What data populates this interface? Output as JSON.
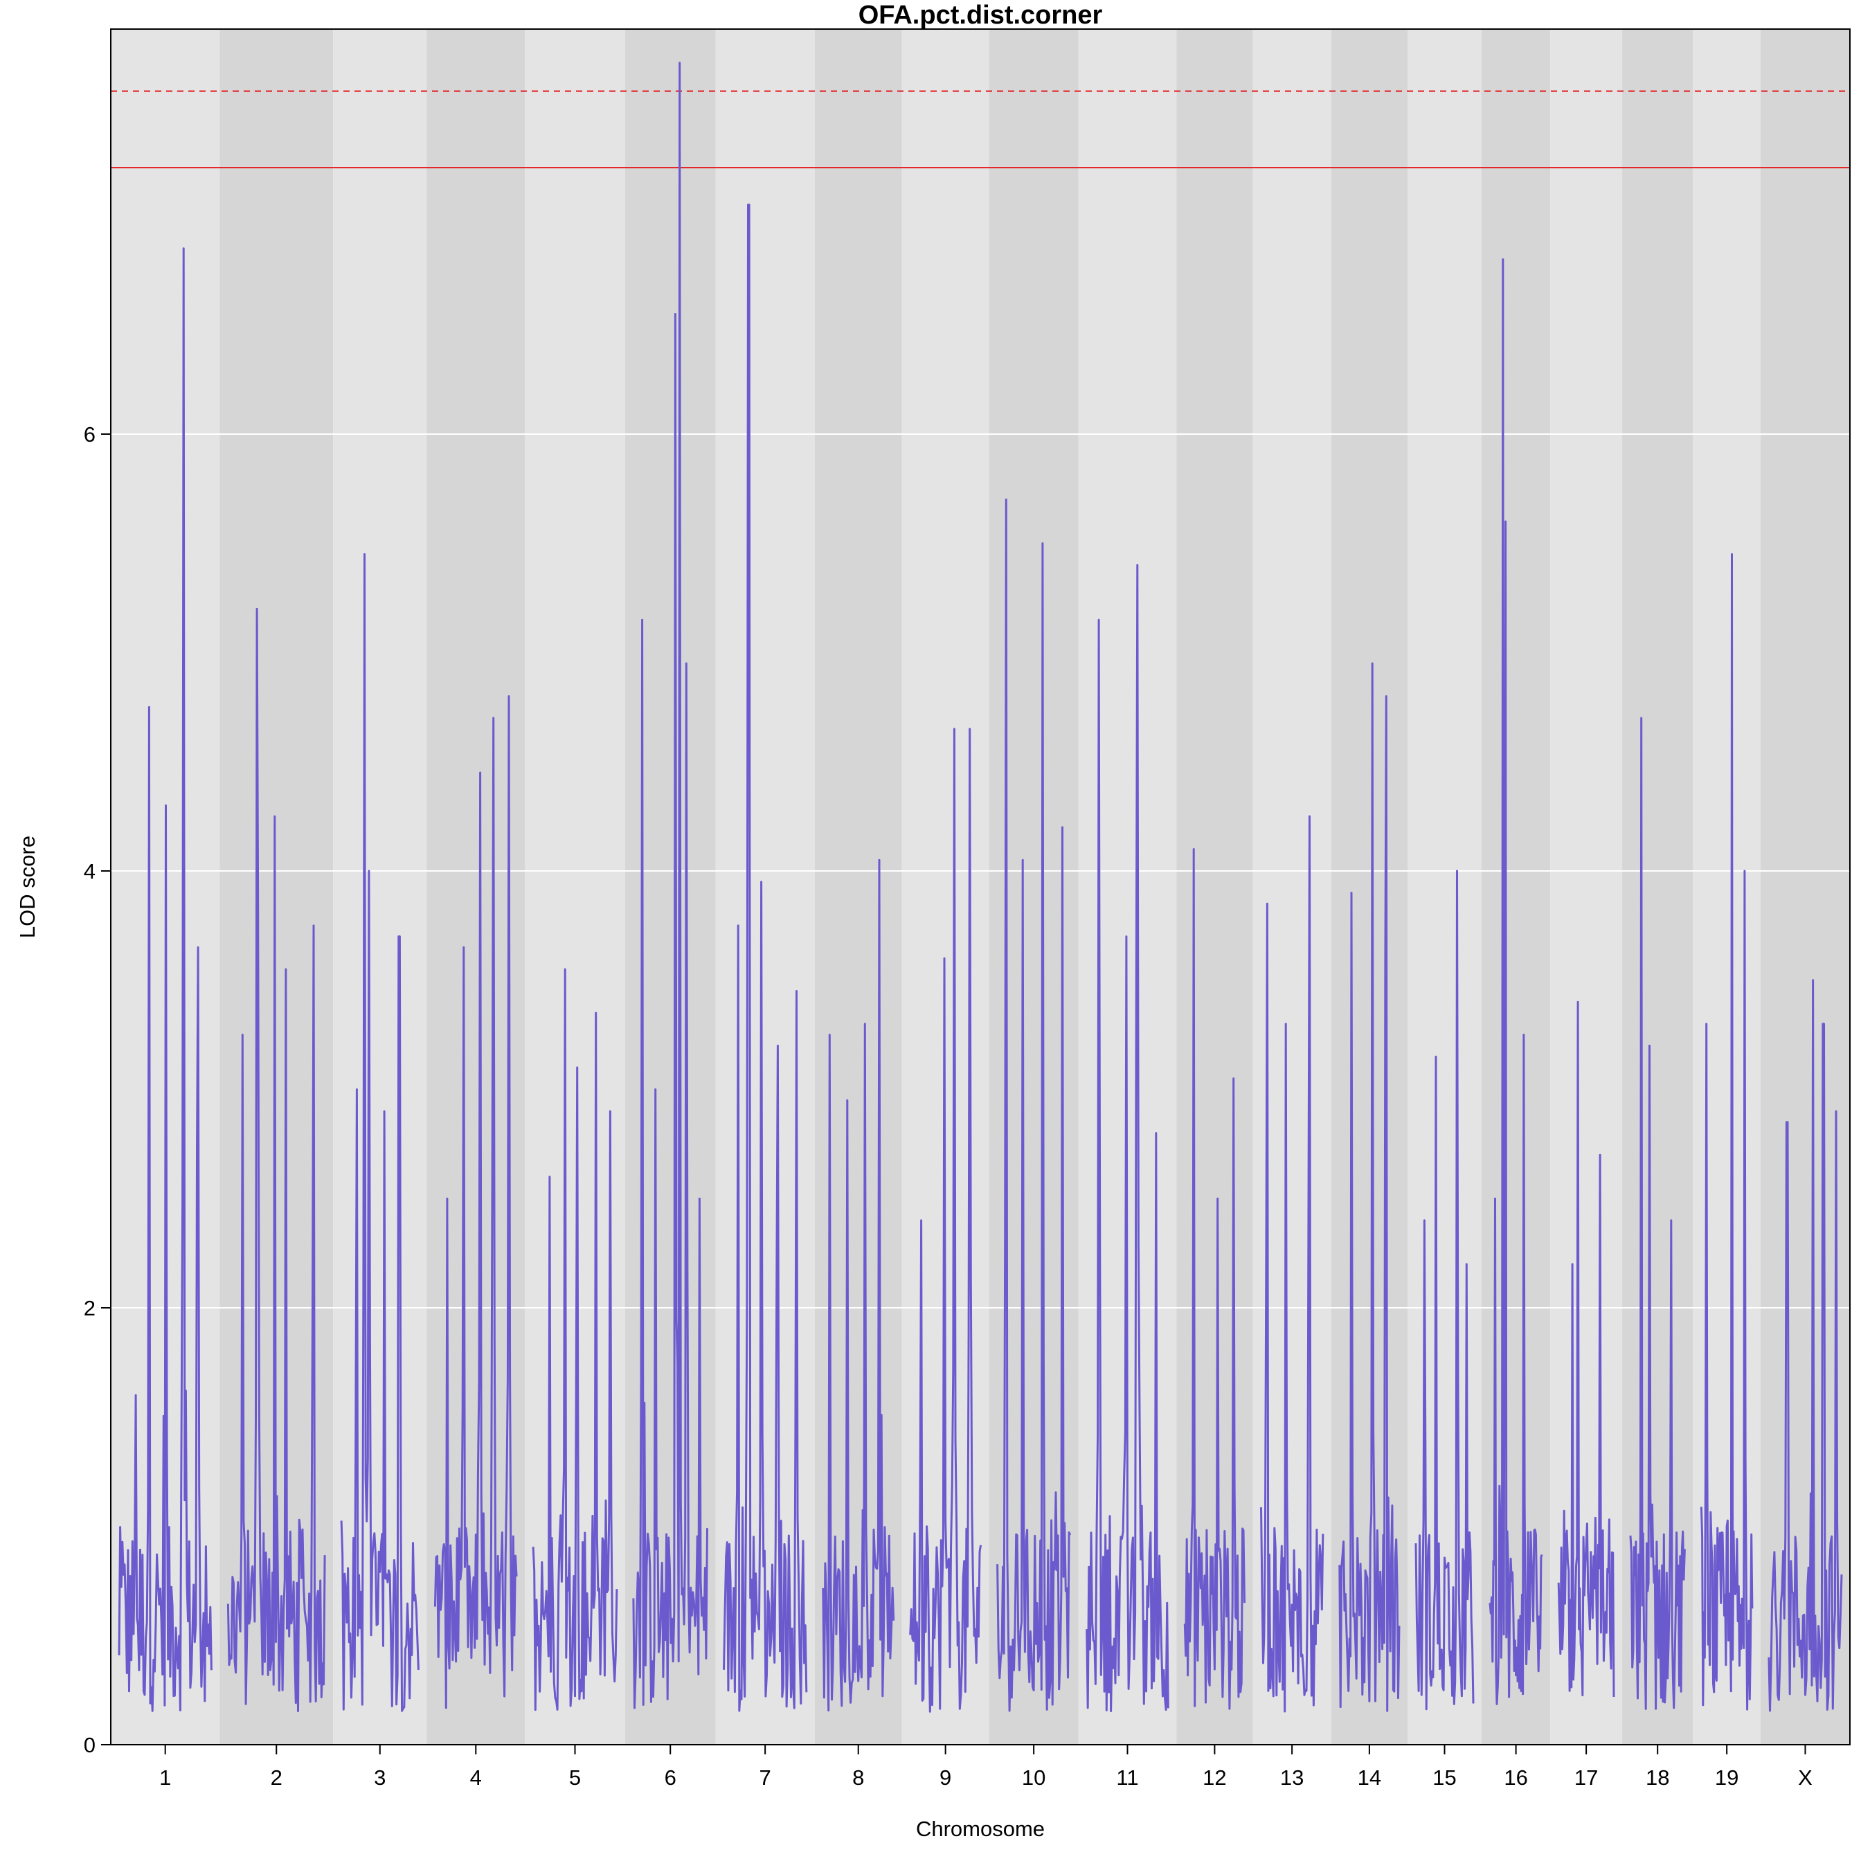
{
  "chart_data": {
    "type": "line",
    "title": "OFA.pct.dist.corner",
    "xlabel": "Chromosome",
    "ylabel": "LOD score",
    "ylim": [
      0,
      7.85
    ],
    "yticks": [
      0,
      2,
      4,
      6
    ],
    "grid": true,
    "line_color": "#6a5acd",
    "threshold_color": "#e41a1c",
    "thresholds": [
      {
        "value": 7.57,
        "style": "dashed"
      },
      {
        "value": 7.22,
        "style": "solid"
      }
    ],
    "categories": [
      "1",
      "2",
      "3",
      "4",
      "5",
      "6",
      "7",
      "8",
      "9",
      "10",
      "11",
      "12",
      "13",
      "14",
      "15",
      "16",
      "17",
      "18",
      "19",
      "X"
    ],
    "chromosomes": [
      {
        "label": "1",
        "length": 1.0,
        "peaks": [
          [
            0.18,
            1.6
          ],
          [
            0.32,
            4.75
          ],
          [
            0.5,
            4.3
          ],
          [
            0.7,
            6.85
          ],
          [
            0.85,
            3.65
          ],
          [
            0.93,
            0.2
          ]
        ]
      },
      {
        "label": "2",
        "length": 1.04,
        "peaks": [
          [
            0.15,
            3.25
          ],
          [
            0.3,
            5.2
          ],
          [
            0.48,
            4.25
          ],
          [
            0.6,
            3.55
          ],
          [
            0.88,
            3.75
          ]
        ]
      },
      {
        "label": "3",
        "length": 0.86,
        "peaks": [
          [
            0.2,
            3.0
          ],
          [
            0.3,
            5.45
          ],
          [
            0.36,
            4.0
          ],
          [
            0.55,
            2.9
          ],
          [
            0.75,
            3.7
          ]
        ]
      },
      {
        "label": "4",
        "length": 0.9,
        "peaks": [
          [
            0.15,
            2.5
          ],
          [
            0.35,
            3.65
          ],
          [
            0.55,
            4.45
          ],
          [
            0.72,
            4.7
          ],
          [
            0.9,
            4.8
          ]
        ]
      },
      {
        "label": "5",
        "length": 0.92,
        "peaks": [
          [
            0.2,
            2.6
          ],
          [
            0.38,
            3.55
          ],
          [
            0.52,
            3.1
          ],
          [
            0.75,
            3.35
          ],
          [
            0.92,
            2.9
          ]
        ]
      },
      {
        "label": "6",
        "length": 0.83,
        "peaks": [
          [
            0.12,
            5.15
          ],
          [
            0.3,
            3.0
          ],
          [
            0.57,
            6.55
          ],
          [
            0.62,
            7.7
          ],
          [
            0.72,
            4.95
          ],
          [
            0.9,
            2.5
          ]
        ]
      },
      {
        "label": "7",
        "length": 0.91,
        "peaks": [
          [
            0.18,
            3.75
          ],
          [
            0.3,
            7.05
          ],
          [
            0.45,
            3.95
          ],
          [
            0.65,
            3.2
          ],
          [
            0.88,
            3.45
          ]
        ]
      },
      {
        "label": "8",
        "length": 0.8,
        "peaks": [
          [
            0.1,
            3.25
          ],
          [
            0.35,
            2.95
          ],
          [
            0.6,
            3.3
          ],
          [
            0.8,
            4.05
          ]
        ]
      },
      {
        "label": "9",
        "length": 0.8,
        "peaks": [
          [
            0.15,
            2.4
          ],
          [
            0.48,
            3.6
          ],
          [
            0.62,
            4.65
          ],
          [
            0.85,
            4.65
          ]
        ]
      },
      {
        "label": "10",
        "length": 0.82,
        "peaks": [
          [
            0.12,
            5.7
          ],
          [
            0.35,
            4.05
          ],
          [
            0.62,
            5.5
          ],
          [
            0.9,
            4.2
          ]
        ]
      },
      {
        "label": "11",
        "length": 0.9,
        "peaks": [
          [
            0.15,
            5.15
          ],
          [
            0.48,
            3.7
          ],
          [
            0.62,
            5.4
          ],
          [
            0.85,
            2.8
          ]
        ]
      },
      {
        "label": "12",
        "length": 0.7,
        "peaks": [
          [
            0.15,
            4.1
          ],
          [
            0.55,
            2.5
          ],
          [
            0.82,
            3.05
          ]
        ]
      },
      {
        "label": "13",
        "length": 0.72,
        "peaks": [
          [
            0.1,
            3.85
          ],
          [
            0.4,
            3.3
          ],
          [
            0.78,
            4.25
          ]
        ]
      },
      {
        "label": "14",
        "length": 0.7,
        "peaks": [
          [
            0.2,
            3.9
          ],
          [
            0.55,
            4.95
          ],
          [
            0.78,
            4.8
          ]
        ]
      },
      {
        "label": "15",
        "length": 0.68,
        "peaks": [
          [
            0.15,
            2.4
          ],
          [
            0.35,
            3.15
          ],
          [
            0.72,
            4.0
          ],
          [
            0.88,
            2.2
          ]
        ]
      },
      {
        "label": "16",
        "length": 0.63,
        "peaks": [
          [
            0.1,
            2.5
          ],
          [
            0.25,
            6.8
          ],
          [
            0.3,
            5.6
          ],
          [
            0.65,
            3.25
          ]
        ]
      },
      {
        "label": "17",
        "length": 0.66,
        "peaks": [
          [
            0.25,
            2.2
          ],
          [
            0.35,
            3.4
          ],
          [
            0.75,
            2.7
          ]
        ]
      },
      {
        "label": "18",
        "length": 0.65,
        "peaks": [
          [
            0.2,
            4.7
          ],
          [
            0.35,
            3.2
          ],
          [
            0.75,
            2.4
          ]
        ]
      },
      {
        "label": "19",
        "length": 0.62,
        "peaks": [
          [
            0.1,
            3.3
          ],
          [
            0.6,
            5.45
          ],
          [
            0.85,
            4.0
          ]
        ]
      },
      {
        "label": "X",
        "length": 0.82,
        "peaks": [
          [
            0.25,
            2.85
          ],
          [
            0.6,
            3.5
          ],
          [
            0.75,
            3.3
          ],
          [
            0.92,
            2.9
          ]
        ]
      }
    ]
  }
}
